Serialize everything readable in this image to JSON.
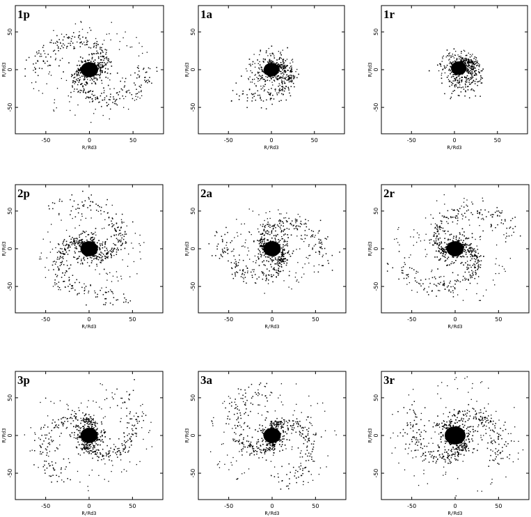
{
  "chart_data": [
    {
      "type": "scatter",
      "label": "1p",
      "xlabel": "R/Rd3",
      "ylabel": "R/Rd3",
      "xlim": [
        -85,
        85
      ],
      "ylim": [
        -85,
        85
      ],
      "xticks": [
        -50,
        0,
        50
      ],
      "yticks": [
        -50,
        0,
        50
      ],
      "structure": {
        "core_radius": 10,
        "core_center": [
          0,
          0
        ],
        "arm_count": 2,
        "arm_extent": 62,
        "halo_extent": 70,
        "arm_handedness": "counterclockwise"
      }
    },
    {
      "type": "scatter",
      "label": "1a",
      "xlabel": "R/Rd3",
      "ylabel": "R/Rd3",
      "xlim": [
        -85,
        85
      ],
      "ylim": [
        -85,
        85
      ],
      "xticks": [
        -50,
        0,
        50
      ],
      "yticks": [
        -50,
        0,
        50
      ],
      "structure": {
        "core_radius": 9,
        "core_center": [
          0,
          0
        ],
        "arm_count": 1,
        "arm_extent": 45,
        "halo_extent": 30,
        "arm_handedness": "clockwise"
      }
    },
    {
      "type": "scatter",
      "label": "1r",
      "xlabel": "R/Rd3",
      "ylabel": "R/Rd3",
      "xlim": [
        -85,
        85
      ],
      "ylim": [
        -85,
        85
      ],
      "xticks": [
        -50,
        0,
        50
      ],
      "yticks": [
        -50,
        0,
        50
      ],
      "structure": {
        "core_radius": 9,
        "core_center": [
          5,
          2
        ],
        "arm_count": 1,
        "arm_extent": 30,
        "halo_extent": 25,
        "arm_handedness": "clockwise"
      }
    },
    {
      "type": "scatter",
      "label": "2p",
      "xlabel": "R/Rd3",
      "ylabel": "R/Rd3",
      "xlim": [
        -85,
        85
      ],
      "ylim": [
        -85,
        85
      ],
      "xticks": [
        -50,
        0,
        50
      ],
      "yticks": [
        -50,
        0,
        50
      ],
      "structure": {
        "core_radius": 10,
        "core_center": [
          0,
          0
        ],
        "arm_count": 2,
        "arm_extent": 70,
        "halo_extent": 65,
        "arm_handedness": "counterclockwise"
      }
    },
    {
      "type": "scatter",
      "label": "2a",
      "xlabel": "R/Rd3",
      "ylabel": "R/Rd3",
      "xlim": [
        -85,
        85
      ],
      "ylim": [
        -85,
        85
      ],
      "xticks": [
        -50,
        0,
        50
      ],
      "yticks": [
        -50,
        0,
        50
      ],
      "structure": {
        "core_radius": 10,
        "core_center": [
          0,
          0
        ],
        "arm_count": 2,
        "arm_extent": 65,
        "halo_extent": 60,
        "arm_handedness": "clockwise"
      }
    },
    {
      "type": "scatter",
      "label": "2r",
      "xlabel": "R/Rd3",
      "ylabel": "R/Rd3",
      "xlim": [
        -85,
        85
      ],
      "ylim": [
        -85,
        85
      ],
      "xticks": [
        -50,
        0,
        50
      ],
      "yticks": [
        -50,
        0,
        50
      ],
      "structure": {
        "core_radius": 10,
        "core_center": [
          0,
          0
        ],
        "arm_count": 2,
        "arm_extent": 70,
        "halo_extent": 75,
        "arm_handedness": "clockwise"
      }
    },
    {
      "type": "scatter",
      "label": "3p",
      "xlabel": "R/Rd3",
      "ylabel": "R/Rd3",
      "xlim": [
        -85,
        85
      ],
      "ylim": [
        -85,
        85
      ],
      "xticks": [
        -50,
        0,
        50
      ],
      "yticks": [
        -50,
        0,
        50
      ],
      "structure": {
        "core_radius": 10,
        "core_center": [
          0,
          0
        ],
        "arm_count": 2,
        "arm_extent": 70,
        "halo_extent": 75,
        "arm_handedness": "counterclockwise"
      }
    },
    {
      "type": "scatter",
      "label": "3a",
      "xlabel": "R/Rd3",
      "ylabel": "R/Rd3",
      "xlim": [
        -85,
        85
      ],
      "ylim": [
        -85,
        85
      ],
      "xticks": [
        -50,
        0,
        50
      ],
      "yticks": [
        -50,
        0,
        50
      ],
      "structure": {
        "core_radius": 10,
        "core_center": [
          0,
          0
        ],
        "arm_count": 2,
        "arm_extent": 65,
        "halo_extent": 75,
        "arm_handedness": "clockwise"
      }
    },
    {
      "type": "scatter",
      "label": "3r",
      "xlabel": "R/Rd3",
      "ylabel": "R/Rd3",
      "xlim": [
        -85,
        85
      ],
      "ylim": [
        -85,
        85
      ],
      "xticks": [
        -50,
        0,
        50
      ],
      "yticks": [
        -50,
        0,
        50
      ],
      "structure": {
        "core_radius": 12,
        "core_center": [
          0,
          0
        ],
        "arm_count": 2,
        "arm_extent": 60,
        "halo_extent": 80,
        "arm_handedness": "clockwise"
      }
    }
  ]
}
